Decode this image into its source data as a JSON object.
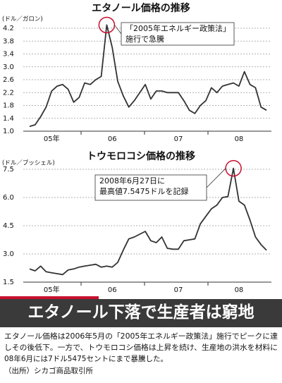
{
  "chart_data": [
    {
      "type": "line",
      "title": "エタノール価格の推移",
      "unit": "(ドル／ガロン)",
      "categories": [
        null,
        null,
        null,
        null,
        "05年",
        null,
        null,
        null,
        null,
        null,
        null,
        null,
        null,
        null,
        null,
        "06",
        null,
        null,
        null,
        null,
        null,
        null,
        null,
        null,
        null,
        null,
        null,
        "07",
        null,
        null,
        null,
        null,
        null,
        null,
        null,
        null,
        null,
        null,
        "08",
        null,
        null,
        null,
        null,
        null
      ],
      "series": [
        {
          "name": "エタノール",
          "color": "#333333",
          "values": [
            1.15,
            1.2,
            1.45,
            1.75,
            2.25,
            2.4,
            2.45,
            2.3,
            1.9,
            2.05,
            2.5,
            2.45,
            2.6,
            2.7,
            4.3,
            3.6,
            2.55,
            2.1,
            1.75,
            1.95,
            2.2,
            2.45,
            2.0,
            2.25,
            2.25,
            2.2,
            2.2,
            2.2,
            1.95,
            1.65,
            1.55,
            1.8,
            1.95,
            2.35,
            2.2,
            2.4,
            2.45,
            2.5,
            2.4,
            2.85,
            2.45,
            2.35,
            1.75,
            1.65
          ]
        }
      ],
      "ylim": [
        1,
        4.2
      ],
      "yticks": [
        {
          "value": 1,
          "label": "1.0"
        },
        1.4,
        1.8,
        2.2,
        2.6,
        {
          "value": 3,
          "label": "3.0"
        },
        3.4,
        3.8,
        4.2
      ],
      "grid": true,
      "annotation": [
        "「2005年エネルギー政策法」",
        "施行で急騰"
      ]
    },
    {
      "type": "line",
      "title": "トウモロコシ価格の推移",
      "unit": "(ドル／ブッシェル)",
      "categories": [
        null,
        null,
        null,
        null,
        "05年",
        null,
        null,
        null,
        null,
        null,
        null,
        null,
        null,
        null,
        null,
        "06",
        null,
        null,
        null,
        null,
        null,
        null,
        null,
        null,
        null,
        null,
        null,
        "07",
        null,
        null,
        null,
        null,
        null,
        null,
        null,
        null,
        null,
        null,
        "08",
        null,
        null,
        null,
        null,
        null
      ],
      "series": [
        {
          "name": "トウモロコシ",
          "color": "#333333",
          "values": [
            2.2,
            2.1,
            2.35,
            2.05,
            2.0,
            1.95,
            1.9,
            2.15,
            2.2,
            2.3,
            2.35,
            2.4,
            2.45,
            2.3,
            2.35,
            2.3,
            2.55,
            3.2,
            3.8,
            3.9,
            4.05,
            4.2,
            3.7,
            3.6,
            3.9,
            3.3,
            3.25,
            3.25,
            3.7,
            3.75,
            3.8,
            4.6,
            5.0,
            5.4,
            5.6,
            6.0,
            6.05,
            7.55,
            5.8,
            5.6,
            4.8,
            3.9,
            3.5,
            3.2
          ]
        }
      ],
      "ylim": [
        1.5,
        7.5
      ],
      "yticks": [
        1.5,
        {
          "value": 3,
          "label": "3.0"
        },
        4.5,
        {
          "value": 6,
          "label": "6.0"
        },
        7.5
      ],
      "grid": true,
      "annotation": [
        "2008年6月27日に",
        "最高値7.5475ドルを記録"
      ]
    }
  ],
  "article": {
    "headline": "エタノール下落で生産者は窮地",
    "body": [
      "エタノール価格は2006年5月の「2005年エネルギー政策法」施行でピークに達",
      "しその後低下。一方で、トウモロコシ価格は上昇を続け、生産地の洪水を材料に",
      "08年6月には7ドル5475セントにまで暴騰した。"
    ],
    "source": "（出所）シカゴ商品取引所"
  }
}
